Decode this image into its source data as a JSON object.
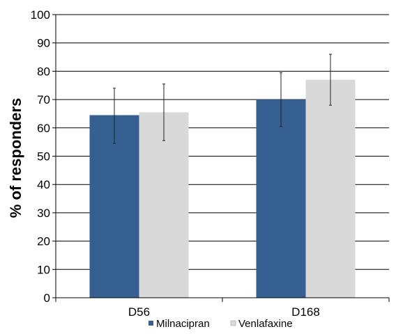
{
  "chart_data": {
    "type": "bar",
    "categories": [
      "D56",
      "D168"
    ],
    "series": [
      {
        "name": "Milnacipran",
        "values": [
          64.5,
          70
        ],
        "error_low": [
          54.5,
          60.5
        ],
        "error_high": [
          74,
          79.5
        ]
      },
      {
        "name": "Venlafaxine",
        "values": [
          65.5,
          77
        ],
        "error_low": [
          55.5,
          68
        ],
        "error_high": [
          75.5,
          86
        ]
      }
    ],
    "title": "",
    "xlabel": "",
    "ylabel": "% of responders",
    "ylim": [
      0,
      100
    ],
    "yticks": [
      0,
      10,
      20,
      30,
      40,
      50,
      60,
      70,
      80,
      90,
      100
    ],
    "grid": true,
    "legend": "bottom",
    "colors": {
      "Milnacipran": "#376092",
      "Venlafaxine": "#d9d9d9"
    }
  }
}
